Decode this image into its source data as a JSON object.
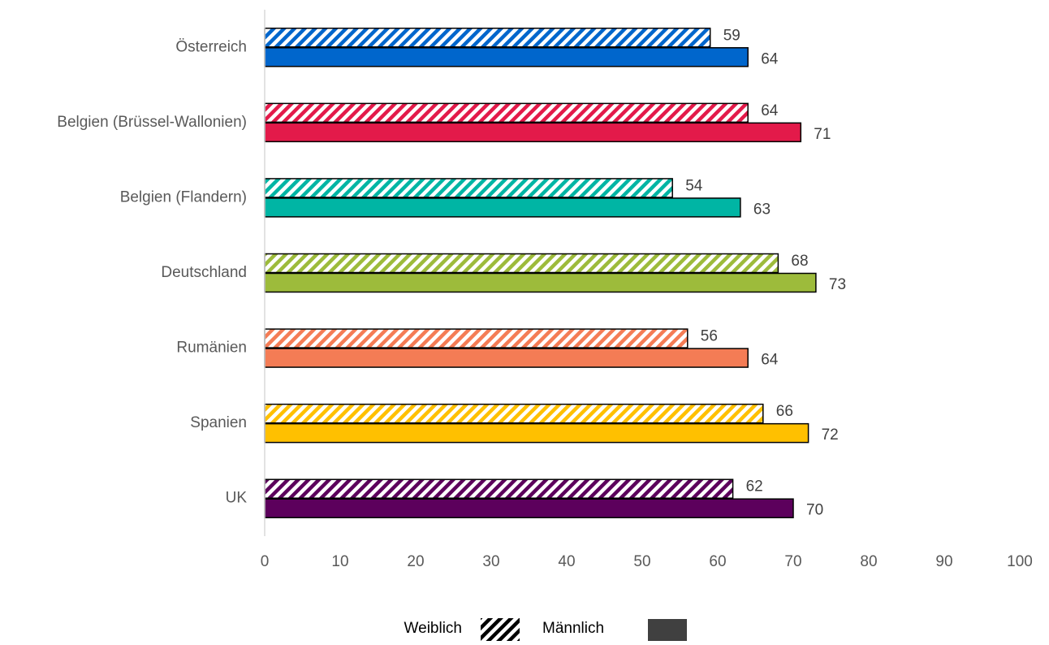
{
  "chart_data": {
    "type": "bar",
    "orientation": "horizontal",
    "categories": [
      "Österreich",
      "Belgien (Brüssel-Wallonien)",
      "Belgien (Flandern)",
      "Deutschland",
      "Rumänien",
      "Spanien",
      "UK"
    ],
    "category_colors": [
      "#0066cc",
      "#e31a4a",
      "#00b5a4",
      "#9dbb3b",
      "#f47c55",
      "#ffc000",
      "#5c005c"
    ],
    "series": [
      {
        "name": "Weiblich",
        "pattern": "hatched",
        "values": [
          59,
          64,
          54,
          68,
          56,
          66,
          62
        ]
      },
      {
        "name": "Männlich",
        "pattern": "solid",
        "values": [
          64,
          71,
          63,
          73,
          64,
          72,
          70
        ]
      }
    ],
    "xlim": [
      0,
      100
    ],
    "xticks": [
      "0",
      "10",
      "20",
      "30",
      "40",
      "50",
      "60",
      "70",
      "80",
      "90",
      "100"
    ],
    "grid": false,
    "legend_position": "bottom",
    "legend_colors": {
      "hatched": "#000000",
      "solid": "#404040"
    }
  }
}
